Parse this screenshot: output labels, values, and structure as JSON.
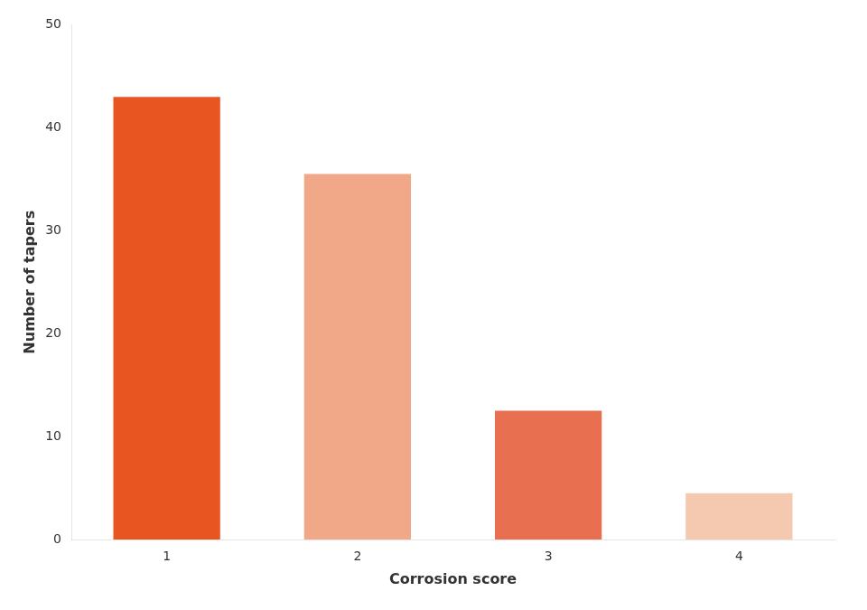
{
  "chart_data": {
    "type": "bar",
    "categories": [
      "1",
      "2",
      "3",
      "4"
    ],
    "values": [
      43,
      35.5,
      12.5,
      4.5
    ],
    "colors": [
      "#E85520",
      "#F0A888",
      "#E87050",
      "#F5C8B0"
    ],
    "xlabel": "Corrosion score",
    "ylabel": "Number of tapers",
    "ylim": [
      0,
      50
    ],
    "yticks": [
      0,
      10,
      20,
      30,
      40,
      50
    ],
    "grid": false
  }
}
